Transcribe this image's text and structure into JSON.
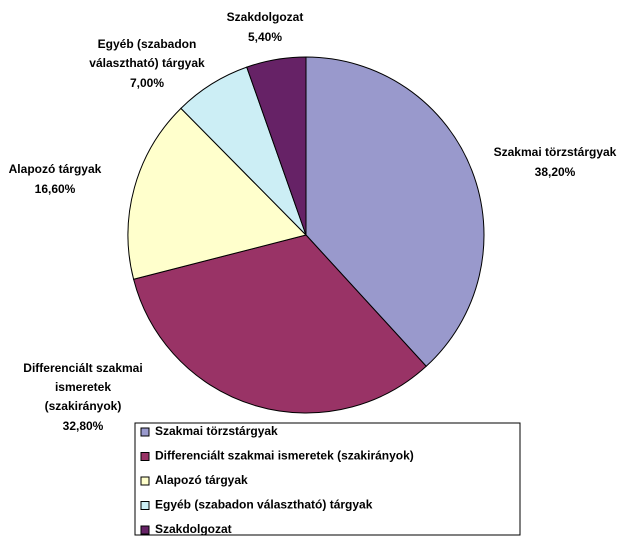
{
  "chart_data": {
    "type": "pie",
    "categories": [
      "Szakmai törzstárgyak",
      "Differenciált szakmai ismeretek (szakirányok)",
      "Alapozó tárgyak",
      "Egyéb (szabadon választható) tárgyak",
      "Szakdolgozat"
    ],
    "values": [
      38.2,
      32.8,
      16.6,
      7.0,
      5.4
    ],
    "value_labels": [
      "38,20%",
      "32,80%",
      "16,60%",
      "7,00%",
      "5,40%"
    ],
    "colors": [
      "#9999cc",
      "#993366",
      "#ffffcc",
      "#cceeF5",
      "#662266"
    ],
    "legend": "bottom"
  }
}
